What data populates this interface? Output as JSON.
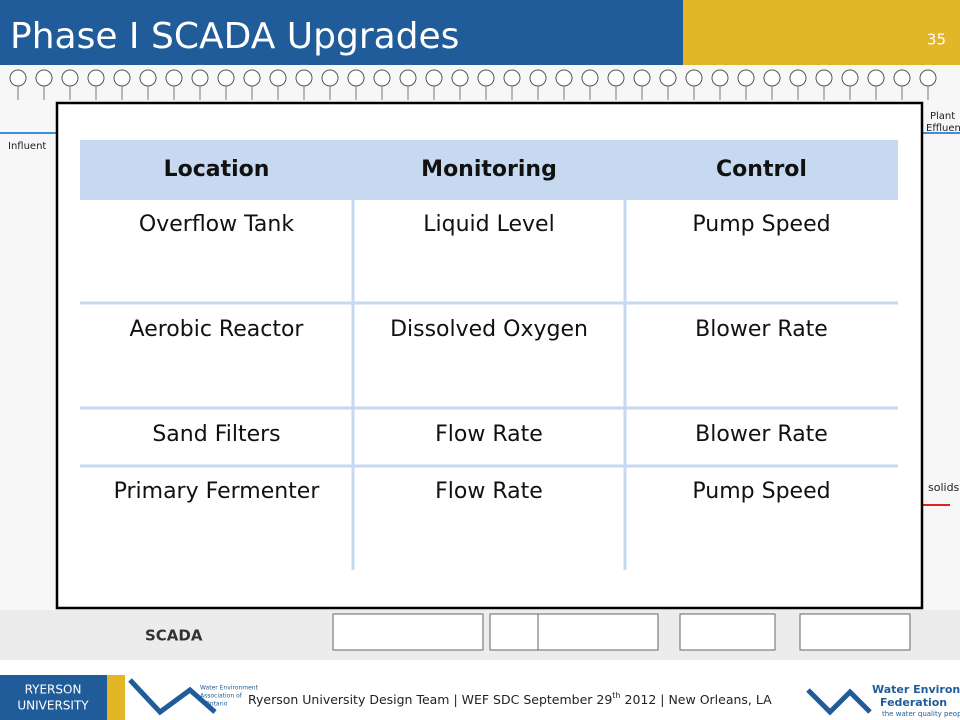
{
  "header": {
    "title": "Phase I SCADA Upgrades",
    "page_number": "35"
  },
  "table": {
    "columns": [
      "Location",
      "Monitoring",
      "Control"
    ],
    "rows": [
      [
        "Overflow Tank",
        "Liquid Level",
        "Pump Speed"
      ],
      [
        "Aerobic Reactor",
        "Dissolved Oxygen",
        "Blower Rate"
      ],
      [
        "Sand Filters",
        "Flow Rate",
        "Blower Rate"
      ],
      [
        "Primary Fermenter",
        "Flow Rate",
        "Pump Speed"
      ]
    ]
  },
  "diagram_labels": {
    "influent": "Influent",
    "effluent_1": "Plant",
    "effluent_2": "Effluent",
    "scada": "SCADA",
    "solids": "solids"
  },
  "footer": {
    "text_before": "Ryerson University Design Team | WEF SDC  September 29",
    "superscript": "th",
    "text_after": " 2012  | New Orleans, LA",
    "ryerson": [
      "RYERSON",
      "UNIVERSITY"
    ],
    "weao": [
      "Water Environment",
      "Association of",
      "Ontario"
    ],
    "wef": [
      "Water Environment",
      "Federation",
      "the water quality people"
    ]
  }
}
